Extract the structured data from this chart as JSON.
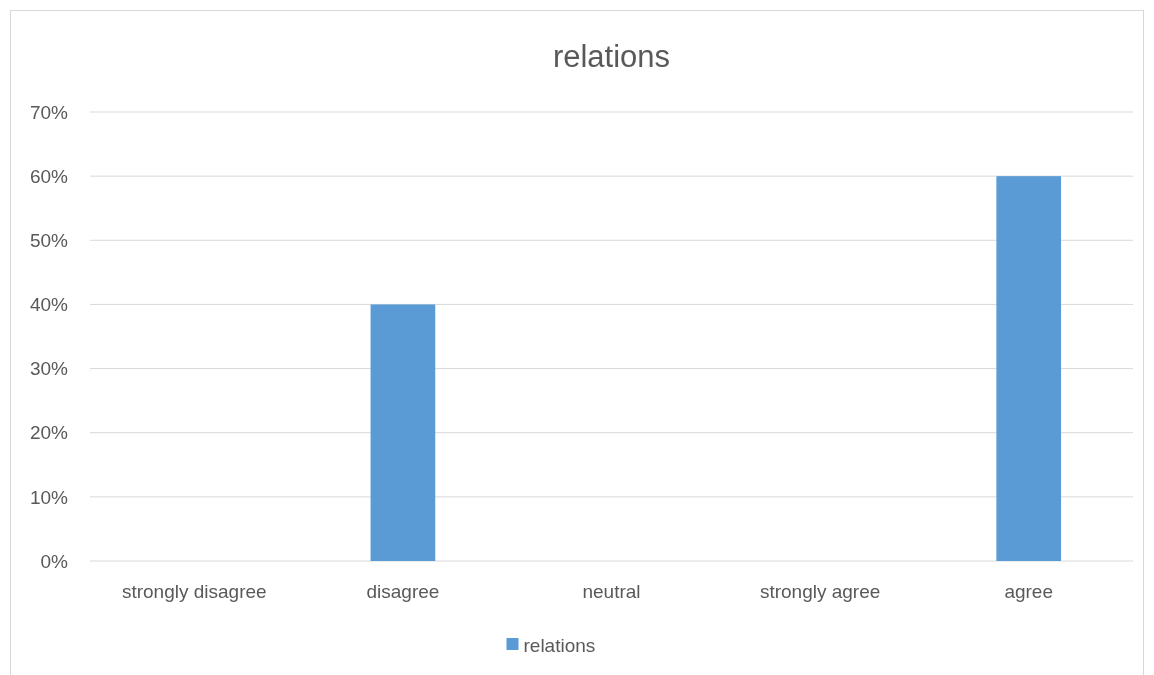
{
  "chart_data": {
    "type": "bar",
    "title": "relations",
    "categories": [
      "strongly disagree",
      "disagree",
      "neutral",
      "strongly agree",
      "agree"
    ],
    "series": [
      {
        "name": "relations",
        "color": "#5b9bd5",
        "values": [
          0,
          40,
          0,
          0,
          60
        ]
      }
    ],
    "ylim": [
      0,
      70
    ],
    "yticks": [
      {
        "value": 0,
        "label": "0%"
      },
      {
        "value": 10,
        "label": "10%"
      },
      {
        "value": 20,
        "label": "20%"
      },
      {
        "value": 30,
        "label": "30%"
      },
      {
        "value": 40,
        "label": "40%"
      },
      {
        "value": 50,
        "label": "50%"
      },
      {
        "value": 60,
        "label": "60%"
      },
      {
        "value": 70,
        "label": "70%"
      }
    ],
    "grid": "y",
    "legend": "bottom"
  }
}
